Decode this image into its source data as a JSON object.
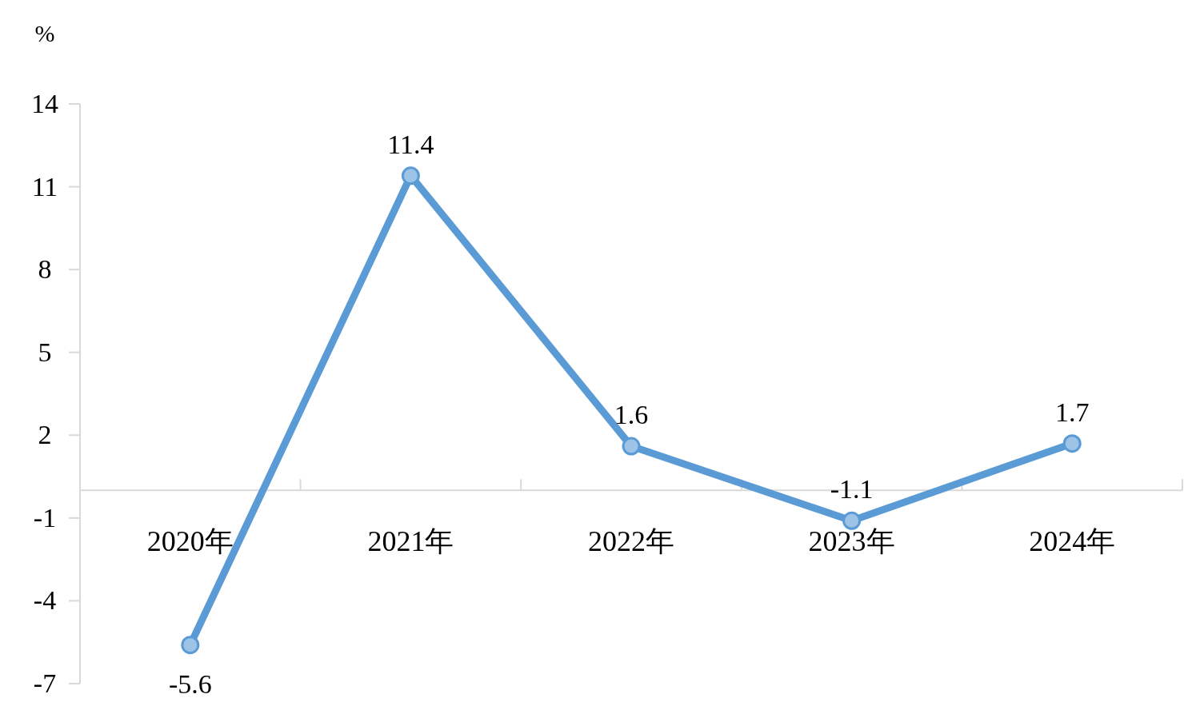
{
  "chart_data": {
    "type": "line",
    "ylabel": "%",
    "categories": [
      "2020年",
      "2021年",
      "2022年",
      "2023年",
      "2024年"
    ],
    "series": [
      {
        "color": "#5b9bd5",
        "values": [
          -5.6,
          11.4,
          1.6,
          -1.1,
          1.7
        ]
      }
    ],
    "ylim": [
      -7,
      14
    ],
    "yticks": [
      -7,
      -4,
      -1,
      2,
      5,
      8,
      11,
      14
    ],
    "marker": "circle",
    "data_labels": true
  }
}
